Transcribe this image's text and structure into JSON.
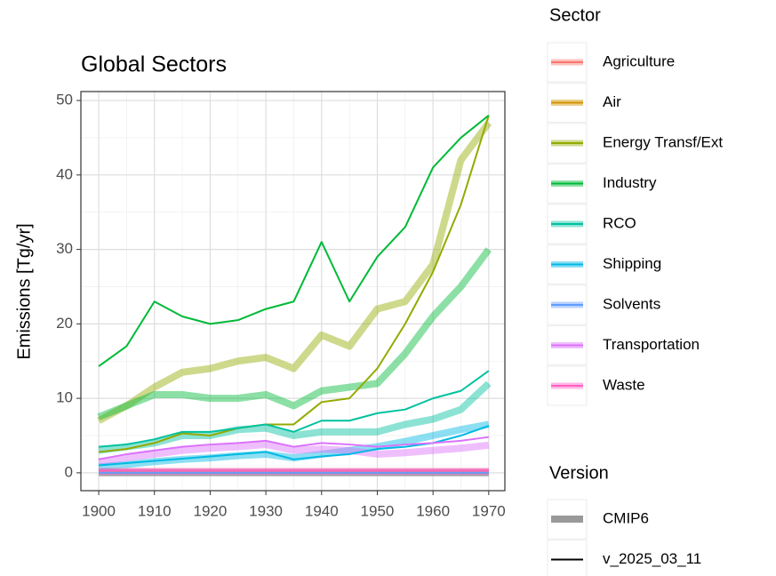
{
  "chart_data": {
    "type": "line",
    "title": "Global Sectors",
    "y_label": "Emissions [Tg/yr]",
    "legend_titles": [
      "Sector",
      "Version"
    ],
    "versions": [
      "CMIP6",
      "v_2025_03_11"
    ],
    "x": [
      1900,
      1905,
      1910,
      1915,
      1920,
      1925,
      1930,
      1935,
      1940,
      1945,
      1950,
      1955,
      1960,
      1965,
      1970
    ],
    "xlim": [
      1896.8,
      1972.9
    ],
    "xticks": [
      1900,
      1910,
      1920,
      1930,
      1940,
      1950,
      1960,
      1970
    ],
    "ylim": [
      -2.4,
      51.2
    ],
    "yticks": [
      0,
      10,
      20,
      30,
      40,
      50
    ],
    "grid": true,
    "minor_grid": true,
    "series": [
      {
        "name": "Agriculture",
        "color": "#F8766D",
        "cmip6": [
          0.1,
          0.1,
          0.1,
          0.1,
          0.1,
          0.1,
          0.1,
          0.1,
          0.1,
          0.1,
          0.1,
          0.1,
          0.1,
          0.1,
          0.1
        ],
        "v2025": [
          0,
          0,
          0,
          0,
          0,
          0,
          0,
          0,
          0,
          0,
          0,
          0,
          0,
          0,
          0
        ]
      },
      {
        "name": "Air",
        "color": "#D39200",
        "cmip6": [
          0,
          0,
          0,
          0,
          0,
          0,
          0,
          0,
          0,
          0,
          0,
          0,
          0,
          0,
          0
        ],
        "v2025": [
          0,
          0,
          0,
          0,
          0,
          0,
          0,
          0,
          0,
          0,
          0,
          0,
          0,
          0,
          0
        ]
      },
      {
        "name": "Energy Transf/Ext",
        "color": "#93AA00",
        "cmip6": [
          7,
          9,
          11.5,
          13.5,
          14,
          15,
          15.5,
          14,
          18.5,
          17,
          22,
          23,
          28,
          42,
          47
        ],
        "v2025": [
          2.8,
          3.2,
          4,
          5.3,
          5,
          6,
          6.5,
          6.5,
          9.5,
          10,
          14,
          20,
          27,
          36,
          48
        ]
      },
      {
        "name": "Industry",
        "color": "#00BA38",
        "cmip6": [
          7.5,
          9,
          10.5,
          10.5,
          10,
          10,
          10.5,
          9,
          11,
          11.5,
          12,
          16,
          21,
          25,
          30
        ],
        "v2025": [
          14.3,
          17,
          23,
          21,
          20,
          20.5,
          22,
          23,
          31,
          23,
          29,
          33,
          41,
          45,
          48
        ]
      },
      {
        "name": "RCO",
        "color": "#00C19F",
        "cmip6": [
          3,
          3.5,
          4,
          5,
          5,
          5.8,
          6,
          5,
          5.5,
          5.5,
          5.5,
          6.5,
          7.2,
          8.5,
          12
        ],
        "v2025": [
          3.5,
          3.8,
          4.5,
          5.5,
          5.5,
          6,
          6.5,
          5.5,
          7,
          7,
          8,
          8.5,
          10,
          11,
          13.7
        ]
      },
      {
        "name": "Shipping",
        "color": "#00B9E3",
        "cmip6": [
          0.8,
          1.1,
          1.5,
          1.8,
          2,
          2.3,
          2.5,
          2,
          2.5,
          3,
          3.5,
          4.2,
          5,
          5.8,
          6.5
        ],
        "v2025": [
          1,
          1.3,
          1.6,
          1.9,
          2.2,
          2.5,
          2.8,
          1.8,
          2.2,
          2.5,
          3.2,
          3.5,
          4,
          5,
          6.3
        ]
      },
      {
        "name": "Solvents",
        "color": "#619CFF",
        "cmip6": [
          0,
          0,
          0,
          0,
          0,
          0,
          0,
          0,
          0,
          0,
          0,
          0,
          0,
          0,
          0
        ],
        "v2025": [
          0,
          0,
          0,
          0,
          0,
          0,
          0,
          0,
          0,
          0,
          0,
          0,
          0,
          0,
          0
        ]
      },
      {
        "name": "Transportation",
        "color": "#DB72FB",
        "cmip6": [
          1.5,
          2,
          2.5,
          3,
          3.3,
          3.5,
          3.8,
          3,
          3.2,
          3,
          2.5,
          2.7,
          3,
          3.3,
          3.7
        ],
        "v2025": [
          1.8,
          2.5,
          3,
          3.5,
          3.8,
          4,
          4.3,
          3.5,
          4,
          3.8,
          3.5,
          3.8,
          4,
          4.3,
          4.8
        ]
      },
      {
        "name": "Waste",
        "color": "#FF61C3",
        "cmip6": [
          0.2,
          0.2,
          0.2,
          0.2,
          0.2,
          0.2,
          0.2,
          0.2,
          0.2,
          0.2,
          0.2,
          0.2,
          0.2,
          0.2,
          0.2
        ],
        "v2025": [
          0.3,
          0.3,
          0.3,
          0.3,
          0.3,
          0.3,
          0.3,
          0.3,
          0.3,
          0.3,
          0.3,
          0.3,
          0.3,
          0.3,
          0.3
        ]
      }
    ]
  }
}
